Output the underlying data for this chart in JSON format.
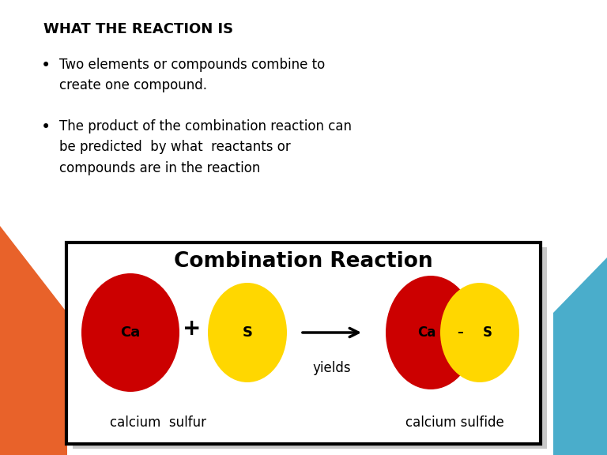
{
  "bg_color": "#ffffff",
  "title_text": "WHAT THE REACTION IS",
  "title_fontsize": 13,
  "bullet_fontsize": 12,
  "diagram_title": "Combination Reaction",
  "diagram_title_fontsize": 19,
  "orange_accent_color": "#E8622A",
  "blue_accent_color": "#4AADCB",
  "red_color": "#CC0000",
  "yellow_color": "#FFD700",
  "black_color": "#000000",
  "white_color": "#ffffff",
  "gray_border": "#c8c8c8",
  "bullet1_line1": "Two elements or compounds combine to",
  "bullet1_line2": "create one compound.",
  "bullet2_line1": "The product of the combination reaction can",
  "bullet2_line2": "be predicted  by what  reactants or",
  "bullet2_line3": "compounds are in the reaction"
}
